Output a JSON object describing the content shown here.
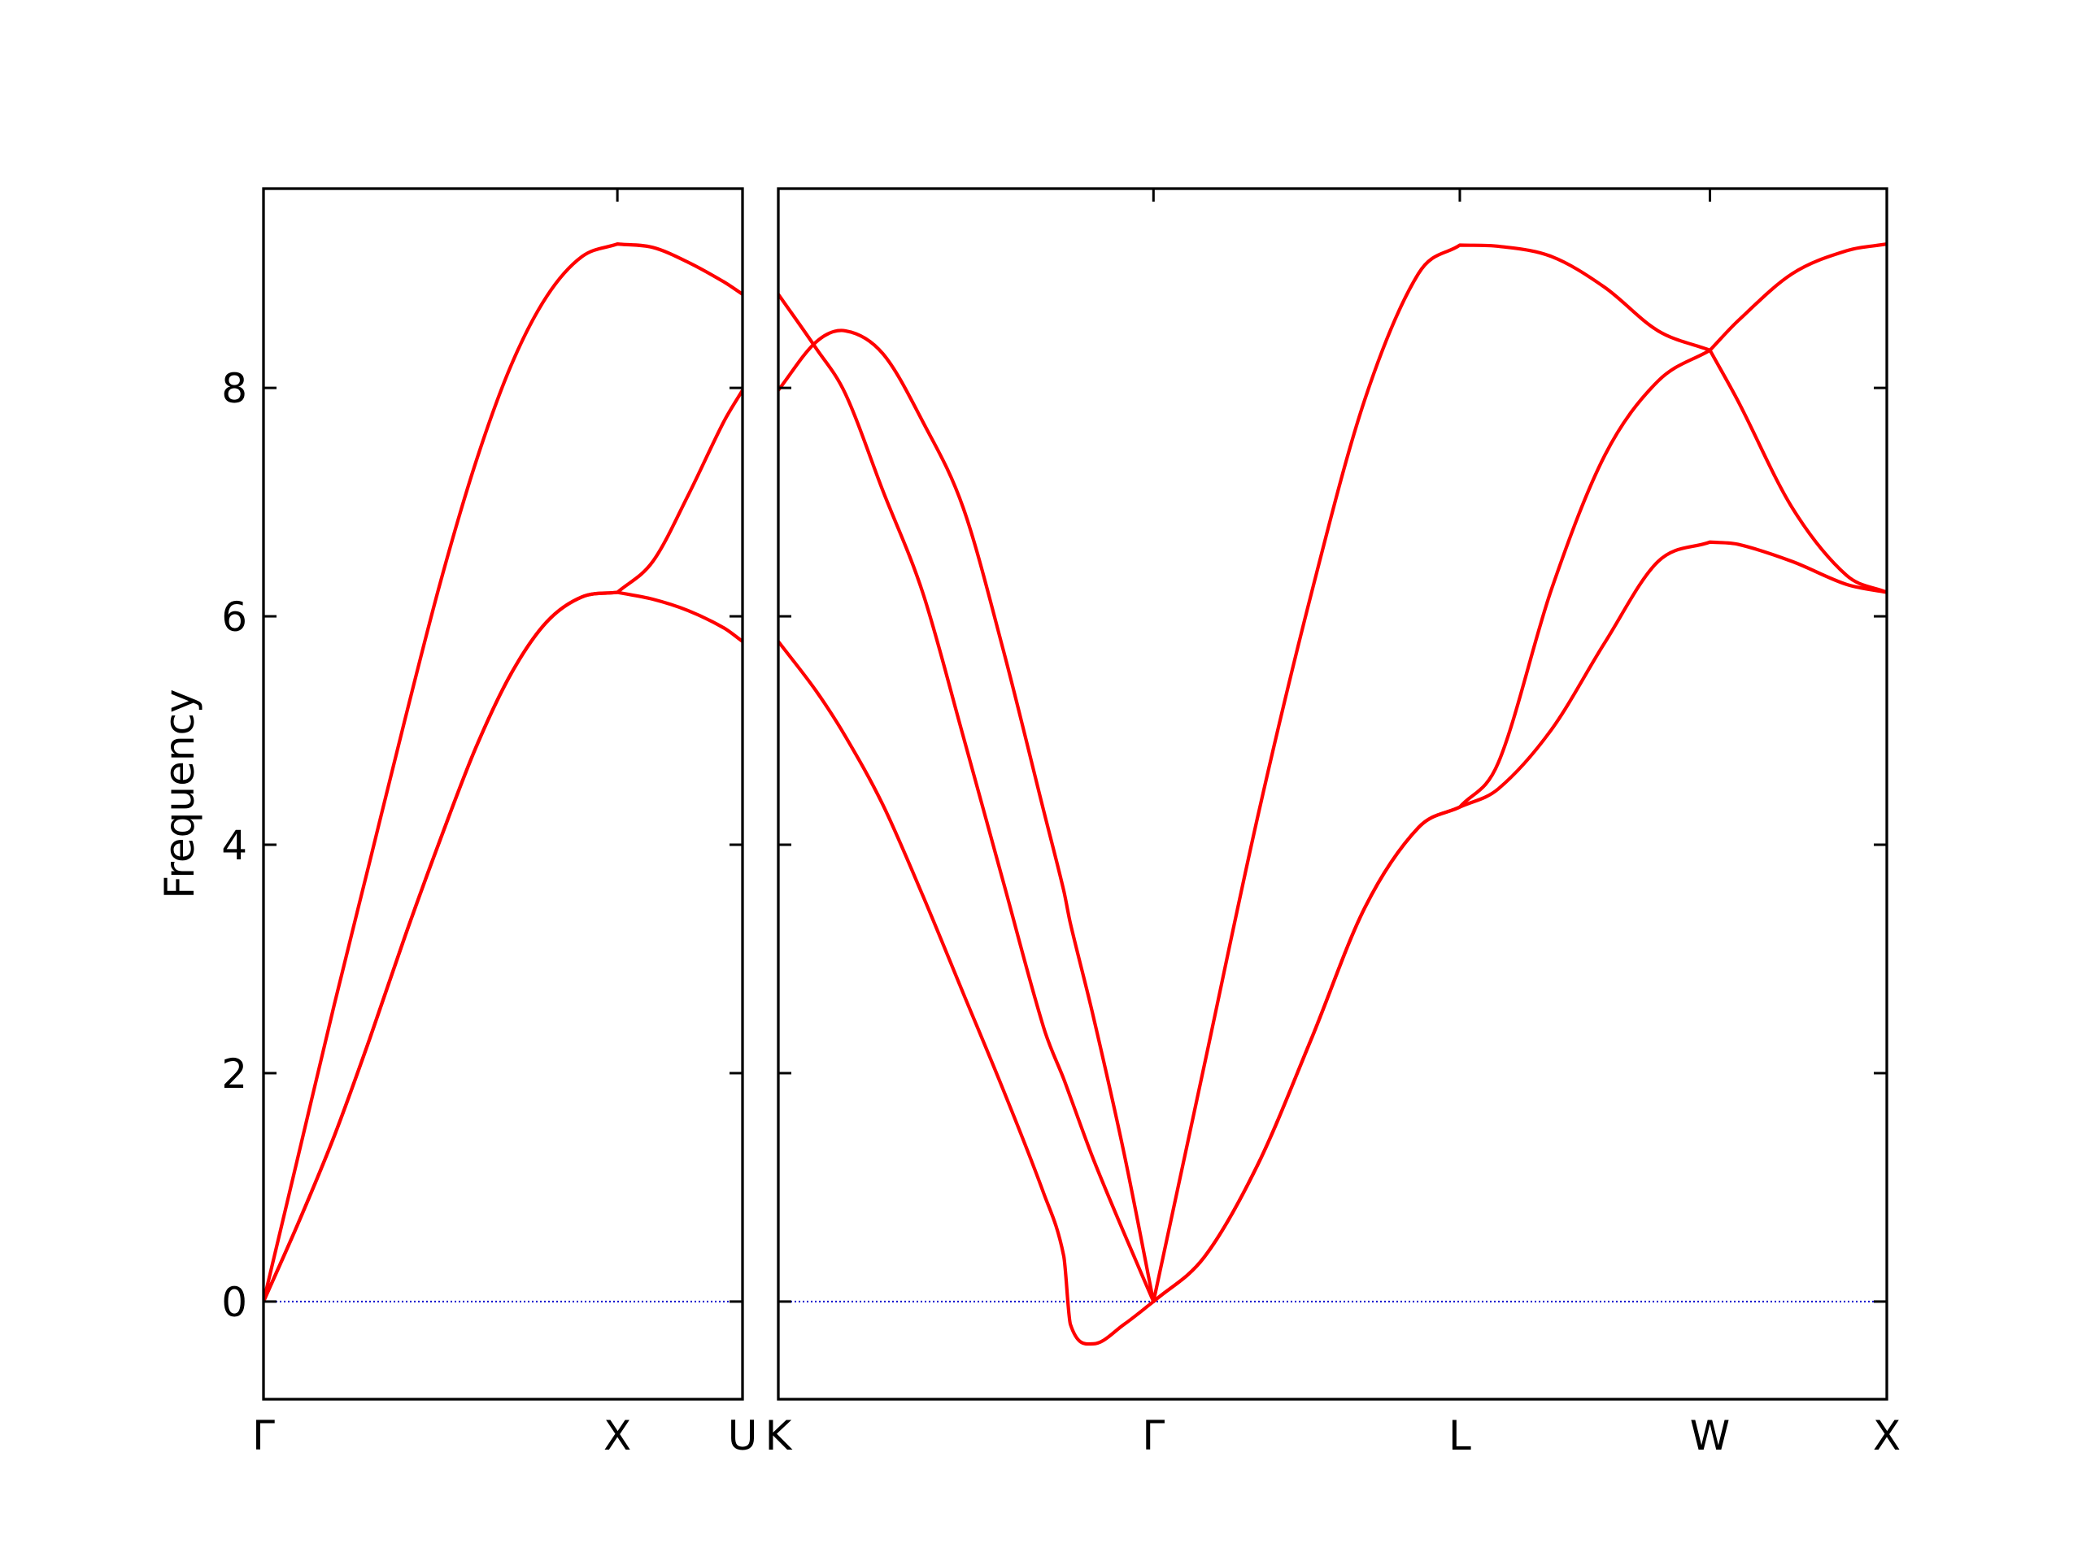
{
  "chart_data": [
    {
      "type": "line",
      "ylabel": "Frequency",
      "x": [
        0,
        0.1,
        0.2,
        0.3,
        0.4,
        0.5,
        0.6,
        0.7,
        0.8,
        0.9,
        1.0,
        1.1,
        1.2,
        1.3,
        1.3536
      ],
      "series": [
        {
          "color": "#ff0000",
          "values": [
            0,
            1.3,
            2.6,
            3.85,
            5.1,
            6.3,
            7.35,
            8.2,
            8.8,
            9.15,
            9.26,
            9.23,
            9.1,
            8.93,
            8.82
          ]
        },
        {
          "color": "#ff0000",
          "values": [
            0,
            0.7,
            1.45,
            2.3,
            3.2,
            4.05,
            4.85,
            5.5,
            5.95,
            6.17,
            6.21,
            6.48,
            7.06,
            7.7,
            7.98
          ]
        },
        {
          "color": "#ff0000",
          "values": [
            0,
            0.7,
            1.45,
            2.3,
            3.2,
            4.05,
            4.85,
            5.5,
            5.95,
            6.17,
            6.21,
            6.15,
            6.05,
            5.9,
            5.78
          ]
        }
      ],
      "xlim": [
        0,
        1.3536
      ],
      "xticks": [
        {
          "value": 0,
          "label": "Γ"
        },
        {
          "value": 1.0,
          "label": "X"
        },
        {
          "value": 1.3536,
          "label": "U"
        }
      ],
      "ylim": [
        -0.855,
        9.745
      ],
      "yticks": [
        0,
        2,
        4,
        6,
        8
      ],
      "ytick_labels": true,
      "zero_line": {
        "value": 0,
        "color": "#0000cc"
      }
    },
    {
      "type": "line",
      "x": [
        1.3536,
        1.4597,
        1.543,
        1.6491,
        1.7627,
        1.8763,
        1.99,
        2.1036,
        2.1604,
        2.1794,
        2.2438,
        2.3309,
        2.4142,
        2.5579,
        2.7092,
        2.8605,
        3.0118,
        3.1631,
        3.2802,
        3.3893,
        3.5397,
        3.6901,
        3.8406,
        3.9873,
        4.0675,
        4.22,
        4.3729,
        4.4873
      ],
      "series": [
        {
          "color": "#ff0000",
          "values": [
            8.82,
            8.35,
            7.95,
            7.1,
            6.2,
            4.95,
            3.67,
            2.4,
            1.95,
            1.79,
            1.25,
            0.6,
            0,
            2.07,
            4.25,
            6.2,
            7.9,
            9.0,
            9.25,
            9.24,
            9.15,
            8.88,
            8.5,
            8.33,
            8.59,
            9.0,
            9.2,
            9.26
          ]
        },
        {
          "color": "#ff0000",
          "values": [
            7.98,
            8.4,
            8.5,
            8.3,
            7.7,
            6.95,
            5.7,
            4.3,
            3.6,
            3.31,
            2.5,
            1.3,
            0,
            0.39,
            1.2,
            2.3,
            3.45,
            4.15,
            4.33,
            4.72,
            6.24,
            7.41,
            8.06,
            8.33,
            7.88,
            6.95,
            6.36,
            6.21
          ]
        },
        {
          "color": "#ff0000",
          "values": [
            5.78,
            5.35,
            4.95,
            4.35,
            3.55,
            2.7,
            1.85,
            0.95,
            0.4,
            -0.2,
            -0.37,
            -0.2,
            0,
            0.39,
            1.2,
            2.3,
            3.45,
            4.15,
            4.33,
            4.49,
            5.01,
            5.77,
            6.48,
            6.65,
            6.63,
            6.48,
            6.28,
            6.21
          ]
        }
      ],
      "xlim": [
        1.3536,
        4.4873
      ],
      "xticks": [
        {
          "value": 1.3536,
          "label": "K"
        },
        {
          "value": 2.4142,
          "label": "Γ"
        },
        {
          "value": 3.2802,
          "label": "L"
        },
        {
          "value": 3.9873,
          "label": "W"
        },
        {
          "value": 4.4873,
          "label": "X"
        }
      ],
      "ylim": [
        -0.855,
        9.745
      ],
      "yticks": [
        0,
        2,
        4,
        6,
        8
      ],
      "ytick_labels": false,
      "zero_line": {
        "value": 0,
        "color": "#0000cc"
      }
    }
  ]
}
